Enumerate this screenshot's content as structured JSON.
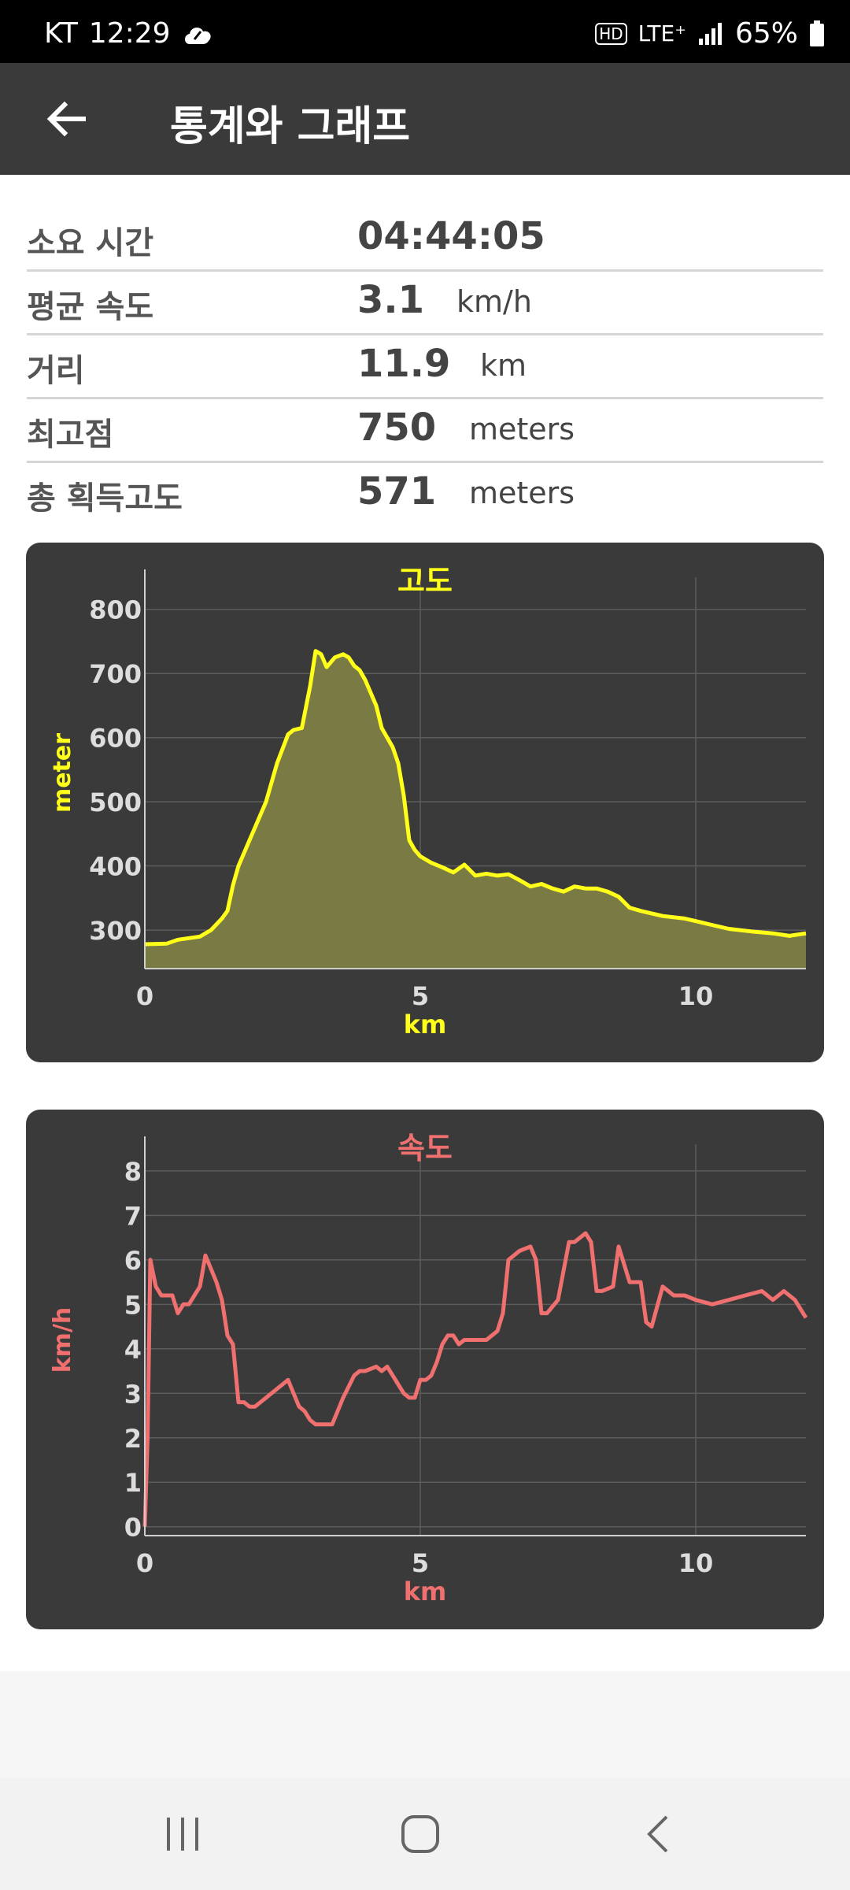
{
  "status_bar": {
    "carrier": "KT",
    "time": "12:29",
    "network": "LTE⁺",
    "hd": "HD",
    "battery": "65%"
  },
  "app_bar": {
    "title": "통계와 그래프",
    "back_icon": "arrow-left-icon"
  },
  "stats": [
    {
      "label": "소요 시간",
      "value": "04:44:05",
      "unit": ""
    },
    {
      "label": "평균 속도",
      "value": "3.1",
      "unit": "km/h"
    },
    {
      "label": "거리",
      "value": "11.9",
      "unit": "km"
    },
    {
      "label": "최고점",
      "value": "750",
      "unit": "meters"
    },
    {
      "label": "총 획득고도",
      "value": "571",
      "unit": "meters"
    }
  ],
  "chart_data": [
    {
      "type": "area",
      "title": "고도",
      "xlabel": "km",
      "ylabel": "meter",
      "xlim": [
        0,
        12
      ],
      "ylim": [
        240,
        850
      ],
      "xticks": [
        "0",
        "5",
        "10"
      ],
      "xtick_values": [
        0,
        5,
        10
      ],
      "yticks": [
        "300",
        "400",
        "500",
        "600",
        "700",
        "800"
      ],
      "ytick_values": [
        300,
        400,
        500,
        600,
        700,
        800
      ],
      "grid": true,
      "color": "#ffff1a",
      "fill": "#7a7a44",
      "x": [
        0,
        0.4,
        0.6,
        1.0,
        1.2,
        1.4,
        1.5,
        1.6,
        1.7,
        1.8,
        2.0,
        2.2,
        2.4,
        2.6,
        2.7,
        2.85,
        3.0,
        3.1,
        3.2,
        3.3,
        3.45,
        3.6,
        3.7,
        3.8,
        3.9,
        4.0,
        4.1,
        4.2,
        4.3,
        4.5,
        4.6,
        4.7,
        4.8,
        4.9,
        5.0,
        5.2,
        5.4,
        5.6,
        5.8,
        6.0,
        6.2,
        6.4,
        6.6,
        6.8,
        7.0,
        7.2,
        7.4,
        7.6,
        7.8,
        8.0,
        8.2,
        8.4,
        8.6,
        8.8,
        9.0,
        9.4,
        9.8,
        10.2,
        10.6,
        11.0,
        11.4,
        11.7,
        12.0
      ],
      "y": [
        278,
        279,
        285,
        290,
        300,
        318,
        330,
        370,
        400,
        420,
        460,
        500,
        560,
        605,
        612,
        615,
        680,
        735,
        730,
        710,
        725,
        730,
        725,
        712,
        705,
        690,
        670,
        650,
        615,
        585,
        560,
        510,
        440,
        425,
        415,
        405,
        398,
        390,
        402,
        385,
        388,
        385,
        387,
        378,
        368,
        372,
        365,
        360,
        368,
        365,
        365,
        360,
        352,
        335,
        330,
        322,
        318,
        310,
        302,
        298,
        295,
        291,
        295
      ]
    },
    {
      "type": "line",
      "title": "속도",
      "xlabel": "km",
      "ylabel": "km/h",
      "xlim": [
        0,
        12
      ],
      "ylim": [
        -0.2,
        8.6
      ],
      "xticks": [
        "0",
        "5",
        "10"
      ],
      "xtick_values": [
        0,
        5,
        10
      ],
      "yticks": [
        "0",
        "1",
        "2",
        "3",
        "4",
        "5",
        "6",
        "7",
        "8"
      ],
      "ytick_values": [
        0,
        1,
        2,
        3,
        4,
        5,
        6,
        7,
        8
      ],
      "grid": true,
      "color": "#f07070",
      "x": [
        0,
        0.05,
        0.1,
        0.2,
        0.3,
        0.5,
        0.6,
        0.7,
        0.8,
        1.0,
        1.1,
        1.2,
        1.3,
        1.4,
        1.5,
        1.6,
        1.7,
        1.8,
        1.9,
        2.0,
        2.2,
        2.4,
        2.6,
        2.8,
        2.9,
        3.0,
        3.1,
        3.2,
        3.4,
        3.5,
        3.6,
        3.8,
        3.9,
        4.0,
        4.2,
        4.3,
        4.4,
        4.5,
        4.6,
        4.7,
        4.8,
        4.9,
        5.0,
        5.1,
        5.2,
        5.3,
        5.4,
        5.5,
        5.6,
        5.7,
        5.8,
        6.0,
        6.2,
        6.4,
        6.5,
        6.6,
        6.7,
        6.8,
        7.0,
        7.1,
        7.2,
        7.3,
        7.5,
        7.7,
        7.8,
        8.0,
        8.1,
        8.2,
        8.3,
        8.5,
        8.6,
        8.8,
        9.0,
        9.1,
        9.2,
        9.4,
        9.6,
        9.8,
        10.0,
        10.3,
        10.6,
        10.9,
        11.2,
        11.4,
        11.6,
        11.8,
        12.0
      ],
      "y": [
        0,
        2.0,
        6.0,
        5.4,
        5.2,
        5.2,
        4.8,
        5.0,
        5.0,
        5.4,
        6.1,
        5.8,
        5.5,
        5.1,
        4.3,
        4.1,
        2.8,
        2.8,
        2.7,
        2.7,
        2.9,
        3.1,
        3.3,
        2.7,
        2.6,
        2.4,
        2.3,
        2.3,
        2.3,
        2.6,
        2.9,
        3.4,
        3.5,
        3.5,
        3.6,
        3.5,
        3.6,
        3.4,
        3.2,
        3.0,
        2.9,
        2.9,
        3.3,
        3.3,
        3.4,
        3.7,
        4.1,
        4.3,
        4.3,
        4.1,
        4.2,
        4.2,
        4.2,
        4.4,
        4.8,
        6.0,
        6.1,
        6.2,
        6.3,
        6.0,
        4.8,
        4.8,
        5.1,
        6.4,
        6.4,
        6.6,
        6.4,
        5.3,
        5.3,
        5.4,
        6.3,
        5.5,
        5.5,
        4.6,
        4.5,
        5.4,
        5.2,
        5.2,
        5.1,
        5.0,
        5.1,
        5.2,
        5.3,
        5.1,
        5.3,
        5.1,
        4.7
      ]
    }
  ],
  "nav_bar": {
    "recent_icon": "recent-apps-icon",
    "home_icon": "home-icon",
    "back_icon": "back-chevron-icon"
  }
}
